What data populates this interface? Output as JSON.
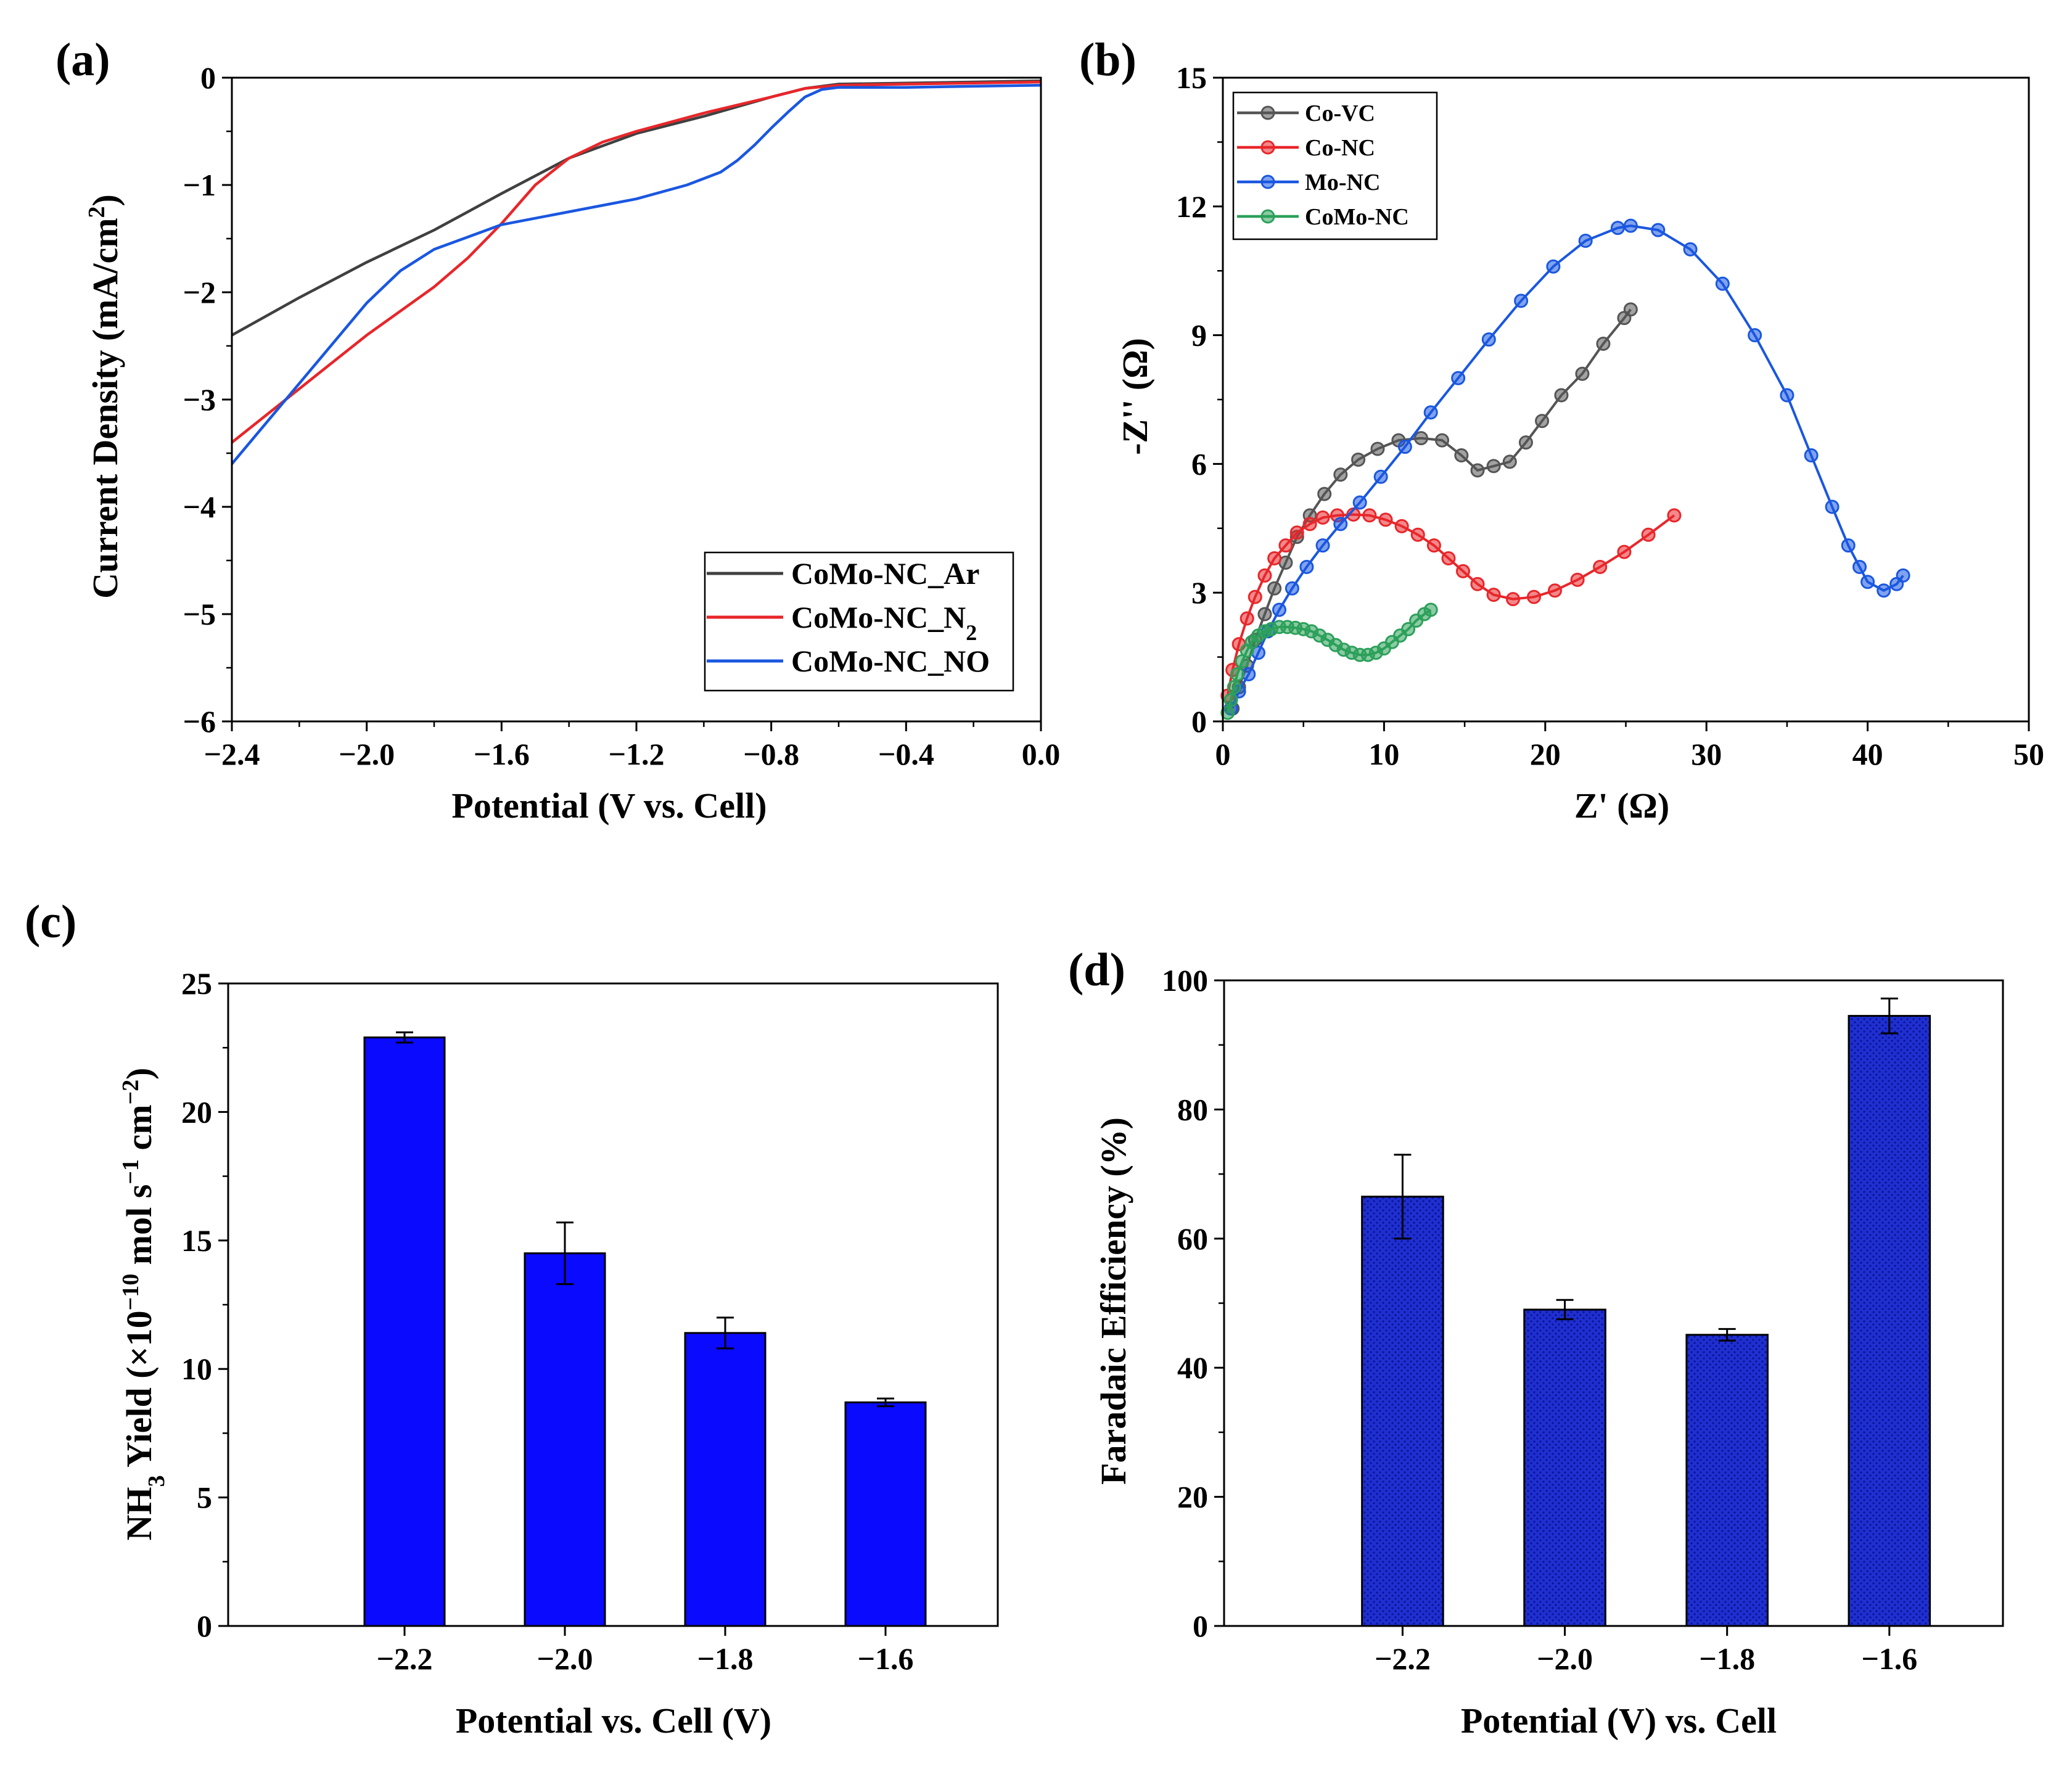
{
  "chart_data": [
    {
      "panel": "(a)",
      "type": "line",
      "title": "",
      "xlabel": "Potential (V vs. Cell)",
      "ylabel": "Current Density (mA/cm2)",
      "ylabel_parts": {
        "main": "Current Density (mA/cm",
        "sup": "2",
        "end": ")"
      },
      "xlim": [
        -2.4,
        0.0
      ],
      "ylim": [
        -6,
        0
      ],
      "xticks": [
        -2.4,
        -2.0,
        -1.6,
        -1.2,
        -0.8,
        -0.4,
        0.0
      ],
      "xtick_labels": [
        "−2.4",
        "−2.0",
        "−1.6",
        "−1.2",
        "−0.8",
        "−0.4",
        "0.0"
      ],
      "yticks": [
        -6,
        -5,
        -4,
        -3,
        -2,
        -1,
        0
      ],
      "ytick_labels": [
        "−6",
        "−5",
        "−4",
        "−3",
        "−2",
        "−1",
        "0"
      ],
      "legend_position": "bottom-right",
      "series": [
        {
          "name": "CoMo-NC_Ar",
          "label_parts": {
            "main": "CoMo-NC_Ar",
            "sub": ""
          },
          "color": "#404040",
          "x": [
            -2.4,
            -2.2,
            -2.0,
            -1.8,
            -1.6,
            -1.4,
            -1.2,
            -1.0,
            -0.8,
            -0.7,
            -0.6,
            -0.4,
            -0.2,
            0.0
          ],
          "y": [
            -2.4,
            -2.05,
            -1.72,
            -1.42,
            -1.08,
            -0.75,
            -0.52,
            -0.36,
            -0.18,
            -0.1,
            -0.06,
            -0.05,
            -0.04,
            -0.03
          ]
        },
        {
          "name": "CoMo-NC_N2",
          "label_parts": {
            "main": "CoMo-NC_N",
            "sub": "2"
          },
          "color": "#e8262a",
          "x": [
            -2.4,
            -2.2,
            -2.0,
            -1.8,
            -1.7,
            -1.6,
            -1.5,
            -1.4,
            -1.3,
            -1.2,
            -1.0,
            -0.8,
            -0.7,
            -0.6,
            -0.4,
            -0.2,
            0.0
          ],
          "y": [
            -3.4,
            -2.9,
            -2.4,
            -1.95,
            -1.68,
            -1.36,
            -1.0,
            -0.75,
            -0.6,
            -0.5,
            -0.33,
            -0.18,
            -0.1,
            -0.07,
            -0.06,
            -0.05,
            -0.04
          ]
        },
        {
          "name": "CoMo-NC_NO",
          "label_parts": {
            "main": "CoMo-NC_NO",
            "sub": ""
          },
          "color": "#1a57e0",
          "x": [
            -2.4,
            -2.2,
            -2.0,
            -1.9,
            -1.8,
            -1.6,
            -1.4,
            -1.2,
            -1.05,
            -0.95,
            -0.9,
            -0.85,
            -0.8,
            -0.75,
            -0.7,
            -0.65,
            -0.6,
            -0.4,
            -0.2,
            0.0
          ],
          "y": [
            -3.6,
            -2.85,
            -2.1,
            -1.8,
            -1.6,
            -1.37,
            -1.25,
            -1.13,
            -1.0,
            -0.88,
            -0.77,
            -0.63,
            -0.47,
            -0.32,
            -0.18,
            -0.11,
            -0.09,
            -0.09,
            -0.08,
            -0.07
          ]
        }
      ]
    },
    {
      "panel": "(b)",
      "type": "scatter",
      "title": "",
      "xlabel": "Z' (Ω)",
      "ylabel": "-Z'' (Ω)",
      "xlim": [
        0,
        50
      ],
      "ylim": [
        0,
        15
      ],
      "xticks": [
        0,
        10,
        20,
        30,
        40,
        50
      ],
      "xtick_labels": [
        "0",
        "10",
        "20",
        "30",
        "40",
        "50"
      ],
      "yticks": [
        0,
        3,
        6,
        9,
        12,
        15
      ],
      "ytick_labels": [
        "0",
        "3",
        "6",
        "9",
        "12",
        "15"
      ],
      "legend_position": "top-left",
      "series": [
        {
          "name": "Co-VC",
          "color": "#555555",
          "x": [
            0.6,
            1.0,
            1.5,
            2.0,
            2.6,
            3.2,
            3.9,
            4.6,
            5.4,
            6.3,
            7.3,
            8.4,
            9.6,
            10.9,
            12.3,
            13.6,
            14.8,
            15.8,
            16.8,
            17.8,
            18.8,
            19.8,
            21.0,
            22.3,
            23.6,
            24.9,
            25.3
          ],
          "y": [
            0.3,
            0.8,
            1.3,
            1.9,
            2.5,
            3.1,
            3.7,
            4.3,
            4.8,
            5.3,
            5.75,
            6.1,
            6.35,
            6.55,
            6.6,
            6.55,
            6.2,
            5.85,
            5.95,
            6.05,
            6.5,
            7.0,
            7.6,
            8.1,
            8.8,
            9.4,
            9.6
          ]
        },
        {
          "name": "Co-NC",
          "color": "#e8262a",
          "x": [
            0.3,
            0.6,
            1.0,
            1.5,
            2.0,
            2.6,
            3.2,
            3.9,
            4.6,
            5.4,
            6.2,
            7.1,
            8.1,
            9.1,
            10.1,
            11.1,
            12.1,
            13.1,
            14.0,
            14.9,
            15.8,
            16.8,
            18.0,
            19.3,
            20.6,
            22.0,
            23.4,
            24.9,
            26.4,
            28.0
          ],
          "y": [
            0.6,
            1.2,
            1.8,
            2.4,
            2.9,
            3.4,
            3.8,
            4.1,
            4.4,
            4.6,
            4.75,
            4.8,
            4.82,
            4.8,
            4.7,
            4.55,
            4.35,
            4.1,
            3.8,
            3.5,
            3.2,
            2.95,
            2.85,
            2.9,
            3.05,
            3.3,
            3.6,
            3.95,
            4.35,
            4.8
          ]
        },
        {
          "name": "Mo-NC",
          "color": "#1a57e0",
          "x": [
            0.5,
            1.0,
            1.6,
            2.2,
            2.8,
            3.5,
            4.3,
            5.2,
            6.2,
            7.3,
            8.5,
            9.8,
            11.3,
            12.9,
            14.6,
            16.5,
            18.5,
            20.5,
            22.5,
            24.5,
            25.3,
            27.0,
            29.0,
            31.0,
            33.0,
            35.0,
            36.5,
            37.8,
            38.8,
            39.5,
            40.0,
            41.0,
            41.8,
            42.2
          ],
          "y": [
            0.3,
            0.7,
            1.1,
            1.6,
            2.1,
            2.6,
            3.1,
            3.6,
            4.1,
            4.6,
            5.1,
            5.7,
            6.4,
            7.2,
            8.0,
            8.9,
            9.8,
            10.6,
            11.2,
            11.5,
            11.55,
            11.45,
            11.0,
            10.2,
            9.0,
            7.6,
            6.2,
            5.0,
            4.1,
            3.6,
            3.25,
            3.05,
            3.2,
            3.4
          ]
        },
        {
          "name": "CoMo-NC",
          "color": "#2ca05a",
          "x": [
            0.3,
            0.5,
            0.7,
            0.9,
            1.2,
            1.5,
            1.8,
            2.2,
            2.6,
            3.0,
            3.5,
            4.0,
            4.5,
            5.0,
            5.5,
            6.0,
            6.5,
            7.0,
            7.5,
            8.0,
            8.5,
            9.0,
            9.5,
            10.0,
            10.5,
            11.0,
            11.5,
            12.0,
            12.5,
            12.9
          ],
          "y": [
            0.2,
            0.5,
            0.8,
            1.1,
            1.4,
            1.65,
            1.85,
            2.0,
            2.1,
            2.15,
            2.2,
            2.2,
            2.18,
            2.15,
            2.1,
            2.0,
            1.9,
            1.78,
            1.67,
            1.6,
            1.55,
            1.55,
            1.6,
            1.7,
            1.85,
            2.0,
            2.15,
            2.35,
            2.5,
            2.6
          ]
        }
      ]
    },
    {
      "panel": "(c)",
      "type": "bar",
      "title": "",
      "xlabel": "Potential vs. Cell (V)",
      "ylabel": "NH3 Yield (×10−10 mol s−1 cm−2)",
      "ylabel_parts": {
        "a": "NH",
        "b": "3",
        "c": " Yield (×10",
        "d": "−10",
        "e": " mol s",
        "f": "−1",
        "g": " cm",
        "h": "−2",
        "i": ")"
      },
      "categories": [
        "−2.2",
        "−2.0",
        "−1.8",
        "−1.6"
      ],
      "category_positions": [
        1,
        2,
        3,
        4
      ],
      "xlim": [
        -0.1,
        4.7
      ],
      "values": [
        22.9,
        14.5,
        11.4,
        8.7
      ],
      "errors": [
        0.2,
        1.2,
        0.6,
        0.15
      ],
      "ylim": [
        0,
        25
      ],
      "yticks": [
        0,
        5,
        10,
        15,
        20,
        25
      ],
      "ytick_labels": [
        "0",
        "5",
        "10",
        "15",
        "20",
        "25"
      ],
      "bar_color": "#0a0aff"
    },
    {
      "panel": "(d)",
      "type": "bar",
      "title": "",
      "xlabel": "Potential (V) vs. Cell",
      "ylabel": "Faradaic Efficiency (%)",
      "categories": [
        "−2.2",
        "−2.0",
        "−1.8",
        "−1.6"
      ],
      "category_positions": [
        1,
        2,
        3,
        4
      ],
      "xlim": [
        -0.1,
        4.7
      ],
      "values": [
        66.5,
        49.0,
        45.1,
        94.5
      ],
      "errors": [
        6.5,
        1.5,
        0.9,
        2.7
      ],
      "ylim": [
        0,
        100
      ],
      "yticks": [
        0,
        20,
        40,
        60,
        80,
        100
      ],
      "ytick_labels": [
        "0",
        "20",
        "40",
        "60",
        "80",
        "100"
      ],
      "bar_color": "#1a2fd4"
    }
  ]
}
